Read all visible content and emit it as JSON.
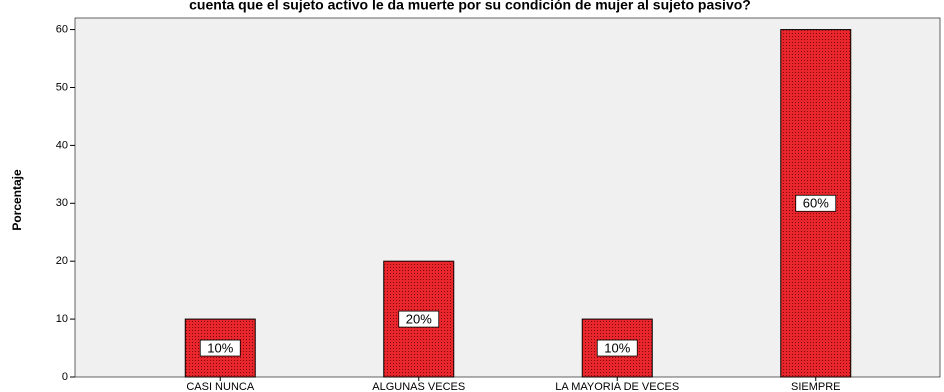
{
  "chart_data": {
    "type": "bar",
    "title": "cuenta que el sujeto activo le da muerte por su condición de mujer al sujeto pasivo?",
    "ylabel": "Porcentaje",
    "categories": [
      "CASI NUNCA",
      "ALGUNAS VECES",
      "LA MAYORIA DE VECES",
      "SIEMPRE"
    ],
    "values": [
      10,
      20,
      10,
      60
    ],
    "value_labels": [
      "10%",
      "20%",
      "10%",
      "60%"
    ],
    "color": "#e8262b",
    "ylim": [
      0,
      62
    ],
    "yticks": [
      0,
      10,
      20,
      30,
      40,
      50,
      60
    ],
    "grid": false
  }
}
